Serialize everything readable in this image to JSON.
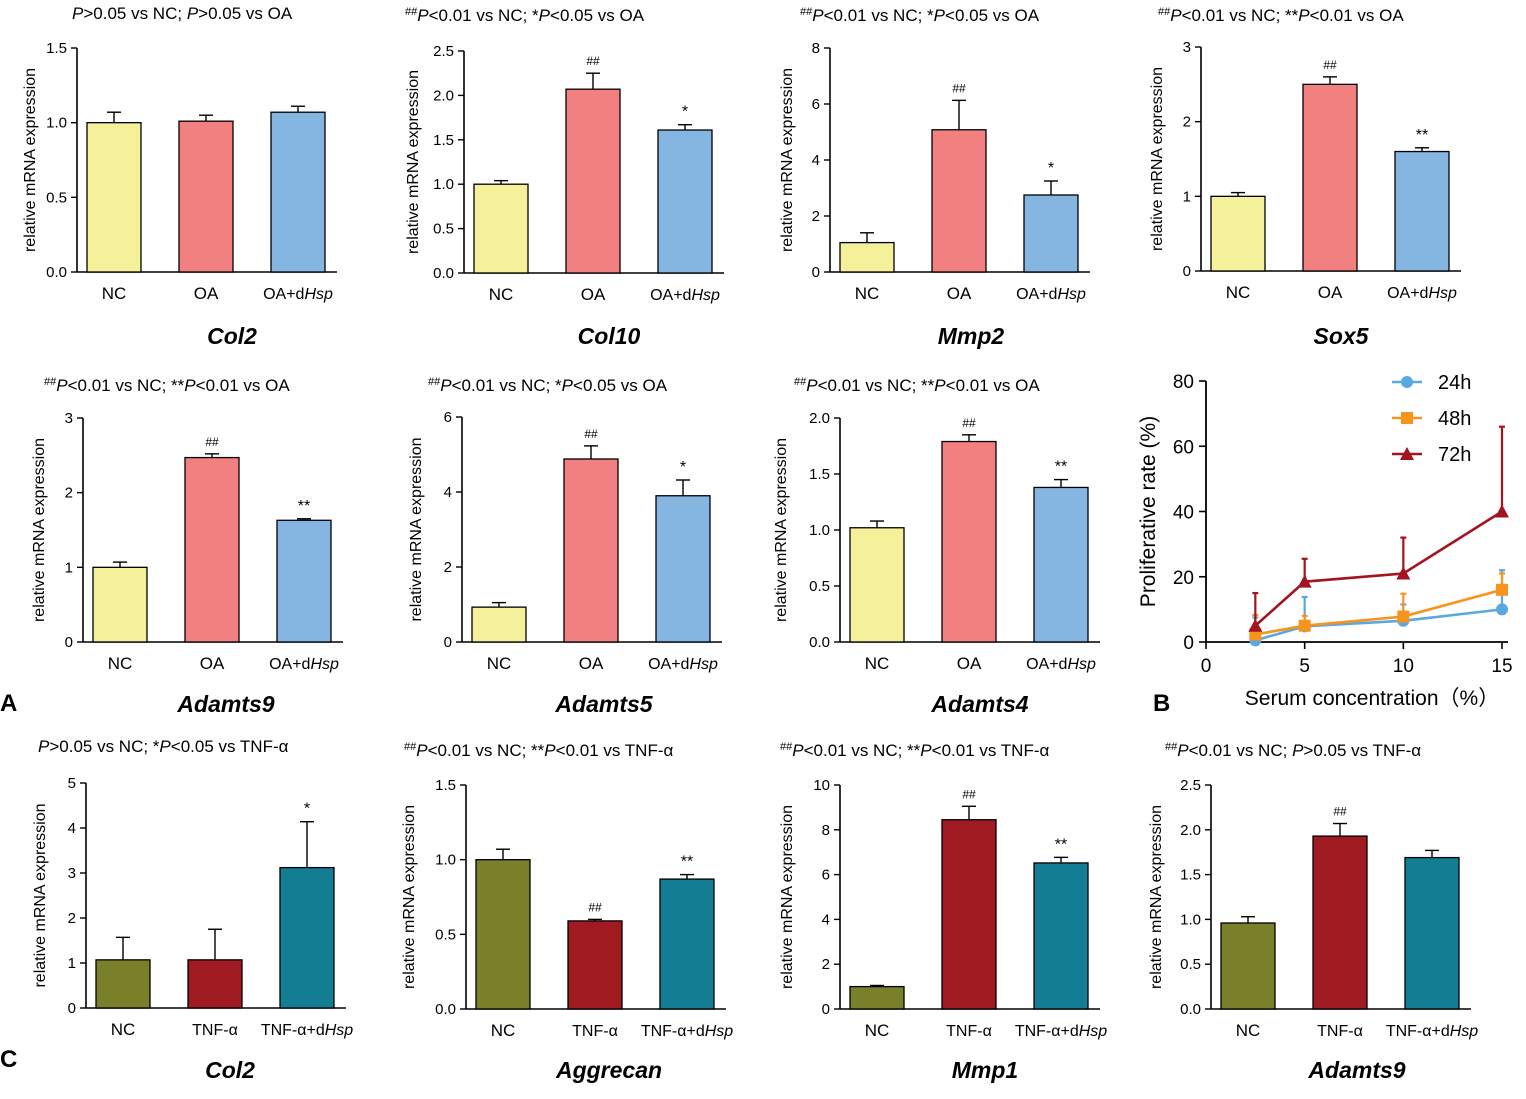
{
  "figure": {
    "panel_labels": [
      "A",
      "B",
      "C"
    ]
  },
  "styles": {
    "colors": {
      "yellow": "#F5F09A",
      "pink": "#F28080",
      "blue": "#85B6E2",
      "olive": "#7A7F2A",
      "darkred": "#A01A22",
      "teal": "#137E93",
      "s24h": "#5AA8E0",
      "s48h": "#F7941D",
      "s72h": "#A3141E",
      "axis": "#000000"
    }
  },
  "chart_data": [
    {
      "type": "bar",
      "panel": "A",
      "annotation": [
        {
          "t": "P",
          "i": true
        },
        {
          "t": ">0.05 vs NC; "
        },
        {
          "t": "P",
          "i": true
        },
        {
          "t": ">0.05 vs OA"
        }
      ],
      "title": "Col2",
      "ylabel": "relative mRNA expression",
      "ylim": [
        0,
        1.5
      ],
      "yticks": [
        "0.0",
        "0.5",
        "1.0",
        "1.5"
      ],
      "categories": [
        [
          {
            "t": "NC"
          }
        ],
        [
          {
            "t": "OA"
          }
        ],
        [
          {
            "t": "OA+d"
          },
          {
            "t": "Hsp",
            "i": true
          }
        ]
      ],
      "values": [
        1.0,
        1.01,
        1.07
      ],
      "errors": [
        0.07,
        0.04,
        0.04
      ],
      "marks": [
        "",
        "",
        ""
      ],
      "colors": [
        "yellow",
        "pink",
        "blue"
      ]
    },
    {
      "type": "bar",
      "panel": "A",
      "annotation": [
        {
          "t": "##",
          "sup": true
        },
        {
          "t": "P",
          "i": true
        },
        {
          "t": "<0.01 vs NC; *"
        },
        {
          "t": "P",
          "i": true
        },
        {
          "t": "<0.05 vs OA"
        }
      ],
      "title": "Col10",
      "ylabel": "relative mRNA expression",
      "ylim": [
        0,
        2.5
      ],
      "yticks": [
        "0.0",
        "0.5",
        "1.0",
        "1.5",
        "2.0",
        "2.5"
      ],
      "categories": [
        [
          {
            "t": "NC"
          }
        ],
        [
          {
            "t": "OA"
          }
        ],
        [
          {
            "t": "OA+d"
          },
          {
            "t": "Hsp",
            "i": true
          }
        ]
      ],
      "values": [
        1.0,
        2.07,
        1.61
      ],
      "errors": [
        0.04,
        0.18,
        0.06
      ],
      "marks": [
        "",
        "##",
        "*"
      ],
      "colors": [
        "yellow",
        "pink",
        "blue"
      ]
    },
    {
      "type": "bar",
      "panel": "A",
      "annotation": [
        {
          "t": "##",
          "sup": true
        },
        {
          "t": "P",
          "i": true
        },
        {
          "t": "<0.01 vs NC; *"
        },
        {
          "t": "P",
          "i": true
        },
        {
          "t": "<0.05 vs OA"
        }
      ],
      "title": "Mmp2",
      "ylabel": "relative mRNA expression",
      "ylim": [
        0,
        8
      ],
      "yticks": [
        "0",
        "2",
        "4",
        "6",
        "8"
      ],
      "categories": [
        [
          {
            "t": "NC"
          }
        ],
        [
          {
            "t": "OA"
          }
        ],
        [
          {
            "t": "OA+d"
          },
          {
            "t": "Hsp",
            "i": true
          }
        ]
      ],
      "values": [
        1.05,
        5.08,
        2.75
      ],
      "errors": [
        0.35,
        1.05,
        0.5
      ],
      "marks": [
        "",
        "##",
        "*"
      ],
      "colors": [
        "yellow",
        "pink",
        "blue"
      ]
    },
    {
      "type": "bar",
      "panel": "A",
      "annotation": [
        {
          "t": "##",
          "sup": true
        },
        {
          "t": "P",
          "i": true
        },
        {
          "t": "<0.01 vs NC; **"
        },
        {
          "t": "P",
          "i": true
        },
        {
          "t": "<0.01 vs OA"
        }
      ],
      "title": "Sox5",
      "ylabel": "relative mRNA expression",
      "ylim": [
        0,
        3
      ],
      "yticks": [
        "0",
        "1",
        "2",
        "3"
      ],
      "categories": [
        [
          {
            "t": "NC"
          }
        ],
        [
          {
            "t": "OA"
          }
        ],
        [
          {
            "t": "OA+d"
          },
          {
            "t": "Hsp",
            "i": true
          }
        ]
      ],
      "values": [
        1.0,
        2.5,
        1.6
      ],
      "errors": [
        0.05,
        0.1,
        0.05
      ],
      "marks": [
        "",
        "##",
        "**"
      ],
      "colors": [
        "yellow",
        "pink",
        "blue"
      ]
    },
    {
      "type": "bar",
      "panel": "A",
      "annotation": [
        {
          "t": "##",
          "sup": true
        },
        {
          "t": "P",
          "i": true
        },
        {
          "t": "<0.01 vs NC; **"
        },
        {
          "t": "P",
          "i": true
        },
        {
          "t": "<0.01 vs OA"
        }
      ],
      "title": "Adamts9",
      "ylabel": "relative mRNA expression",
      "ylim": [
        0,
        3
      ],
      "yticks": [
        "0",
        "1",
        "2",
        "3"
      ],
      "categories": [
        [
          {
            "t": "NC"
          }
        ],
        [
          {
            "t": "OA"
          }
        ],
        [
          {
            "t": "OA+d"
          },
          {
            "t": "Hsp",
            "i": true
          }
        ]
      ],
      "values": [
        1.0,
        2.47,
        1.63
      ],
      "errors": [
        0.07,
        0.05,
        0.02
      ],
      "marks": [
        "",
        "##",
        "**"
      ],
      "colors": [
        "yellow",
        "pink",
        "blue"
      ]
    },
    {
      "type": "bar",
      "panel": "A",
      "annotation": [
        {
          "t": "##",
          "sup": true
        },
        {
          "t": "P",
          "i": true
        },
        {
          "t": "<0.01 vs NC; *"
        },
        {
          "t": "P",
          "i": true
        },
        {
          "t": "<0.05 vs OA"
        }
      ],
      "title": "Adamts5",
      "ylabel": "relative mRNA expression",
      "ylim": [
        0,
        6
      ],
      "yticks": [
        "0",
        "2",
        "4",
        "6"
      ],
      "categories": [
        [
          {
            "t": "NC"
          }
        ],
        [
          {
            "t": "OA"
          }
        ],
        [
          {
            "t": "OA+d"
          },
          {
            "t": "Hsp",
            "i": true
          }
        ]
      ],
      "values": [
        0.93,
        4.88,
        3.9
      ],
      "errors": [
        0.12,
        0.35,
        0.42
      ],
      "marks": [
        "",
        "##",
        "*"
      ],
      "colors": [
        "yellow",
        "pink",
        "blue"
      ]
    },
    {
      "type": "bar",
      "panel": "A",
      "annotation": [
        {
          "t": "##",
          "sup": true
        },
        {
          "t": "P",
          "i": true
        },
        {
          "t": "<0.01 vs NC; **"
        },
        {
          "t": "P",
          "i": true
        },
        {
          "t": "<0.01 vs OA"
        }
      ],
      "title": "Adamts4",
      "ylabel": "relative mRNA expression",
      "ylim": [
        0,
        2.0
      ],
      "yticks": [
        "0.0",
        "0.5",
        "1.0",
        "1.5",
        "2.0"
      ],
      "categories": [
        [
          {
            "t": "NC"
          }
        ],
        [
          {
            "t": "OA"
          }
        ],
        [
          {
            "t": "OA+d"
          },
          {
            "t": "Hsp",
            "i": true
          }
        ]
      ],
      "values": [
        1.02,
        1.79,
        1.38
      ],
      "errors": [
        0.06,
        0.06,
        0.07
      ],
      "marks": [
        "",
        "##",
        "**"
      ],
      "colors": [
        "yellow",
        "pink",
        "blue"
      ]
    },
    {
      "type": "line",
      "panel": "B",
      "xlabel": "Serum concentration（%）",
      "ylabel": "Proliferative rate (%)",
      "xlim": [
        0,
        15
      ],
      "ylim": [
        0,
        80
      ],
      "xticks": [
        0,
        5,
        10,
        15
      ],
      "yticks": [
        0,
        20,
        40,
        60,
        80
      ],
      "x": [
        2.5,
        5,
        10,
        15
      ],
      "series": [
        {
          "name": "24h",
          "marker": "circle",
          "color": "s24h",
          "values": [
            0.5,
            4.8,
            6.5,
            10
          ],
          "errors": [
            7,
            9,
            5,
            12
          ]
        },
        {
          "name": "48h",
          "marker": "square",
          "color": "s48h",
          "values": [
            2.3,
            5,
            7.8,
            16
          ],
          "errors": [
            6,
            3,
            7,
            5
          ]
        },
        {
          "name": "72h",
          "marker": "triangle",
          "color": "s72h",
          "values": [
            5,
            18.5,
            21,
            40
          ],
          "errors": [
            10,
            7,
            11,
            26
          ]
        }
      ]
    },
    {
      "type": "bar",
      "panel": "C",
      "annotation": [
        {
          "t": "P",
          "i": true
        },
        {
          "t": ">0.05 vs NC; *"
        },
        {
          "t": "P",
          "i": true
        },
        {
          "t": "<0.05 vs TNF-α"
        }
      ],
      "title": "Col2",
      "ylabel": "relative mRNA expression",
      "ylim": [
        0,
        5
      ],
      "yticks": [
        "0",
        "1",
        "2",
        "3",
        "4",
        "5"
      ],
      "categories": [
        [
          {
            "t": "NC"
          }
        ],
        [
          {
            "t": "TNF-α"
          }
        ],
        [
          {
            "t": "TNF-α+d"
          },
          {
            "t": "Hsp",
            "i": true
          }
        ]
      ],
      "values": [
        1.07,
        1.07,
        3.12
      ],
      "errors": [
        0.5,
        0.68,
        1.02
      ],
      "marks": [
        "",
        "",
        "*"
      ],
      "colors": [
        "olive",
        "darkred",
        "teal"
      ]
    },
    {
      "type": "bar",
      "panel": "C",
      "annotation": [
        {
          "t": "##",
          "sup": true
        },
        {
          "t": "P",
          "i": true
        },
        {
          "t": "<0.01 vs NC; **"
        },
        {
          "t": "P",
          "i": true
        },
        {
          "t": "<0.01 vs TNF-α"
        }
      ],
      "title": "Aggrecan",
      "ylabel": "relative mRNA expression",
      "ylim": [
        0,
        1.5
      ],
      "yticks": [
        "0.0",
        "0.5",
        "1.0",
        "1.5"
      ],
      "categories": [
        [
          {
            "t": "NC"
          }
        ],
        [
          {
            "t": "TNF-α"
          }
        ],
        [
          {
            "t": "TNF-α+d"
          },
          {
            "t": "Hsp",
            "i": true
          }
        ]
      ],
      "values": [
        1.0,
        0.59,
        0.87
      ],
      "errors": [
        0.07,
        0.01,
        0.03
      ],
      "marks": [
        "",
        "##",
        "**"
      ],
      "colors": [
        "olive",
        "darkred",
        "teal"
      ]
    },
    {
      "type": "bar",
      "panel": "C",
      "annotation": [
        {
          "t": "##",
          "sup": true
        },
        {
          "t": "P",
          "i": true
        },
        {
          "t": "<0.01 vs NC; **"
        },
        {
          "t": "P",
          "i": true
        },
        {
          "t": "<0.01 vs TNF-α"
        }
      ],
      "title": "Mmp1",
      "ylabel": "relative mRNA expression",
      "ylim": [
        0,
        10
      ],
      "yticks": [
        "0",
        "2",
        "4",
        "6",
        "8",
        "10"
      ],
      "categories": [
        [
          {
            "t": "NC"
          }
        ],
        [
          {
            "t": "TNF-α"
          }
        ],
        [
          {
            "t": "TNF-α+d"
          },
          {
            "t": "Hsp",
            "i": true
          }
        ]
      ],
      "values": [
        1.0,
        8.45,
        6.52
      ],
      "errors": [
        0.05,
        0.6,
        0.25
      ],
      "marks": [
        "",
        "##",
        "**"
      ],
      "colors": [
        "olive",
        "darkred",
        "teal"
      ]
    },
    {
      "type": "bar",
      "panel": "C",
      "annotation": [
        {
          "t": "##",
          "sup": true
        },
        {
          "t": "P",
          "i": true
        },
        {
          "t": "<0.01 vs NC; "
        },
        {
          "t": "P",
          "i": true
        },
        {
          "t": ">0.05 vs TNF-α"
        }
      ],
      "title": "Adamts9",
      "ylabel": "relative mRNA expression",
      "ylim": [
        0,
        2.5
      ],
      "yticks": [
        "0.0",
        "0.5",
        "1.0",
        "1.5",
        "2.0",
        "2.5"
      ],
      "categories": [
        [
          {
            "t": "NC"
          }
        ],
        [
          {
            "t": "TNF-α"
          }
        ],
        [
          {
            "t": "TNF-α+d"
          },
          {
            "t": "Hsp",
            "i": true
          }
        ]
      ],
      "values": [
        0.96,
        1.93,
        1.69
      ],
      "errors": [
        0.07,
        0.14,
        0.08
      ],
      "marks": [
        "",
        "##",
        ""
      ],
      "colors": [
        "olive",
        "darkred",
        "teal"
      ]
    }
  ]
}
